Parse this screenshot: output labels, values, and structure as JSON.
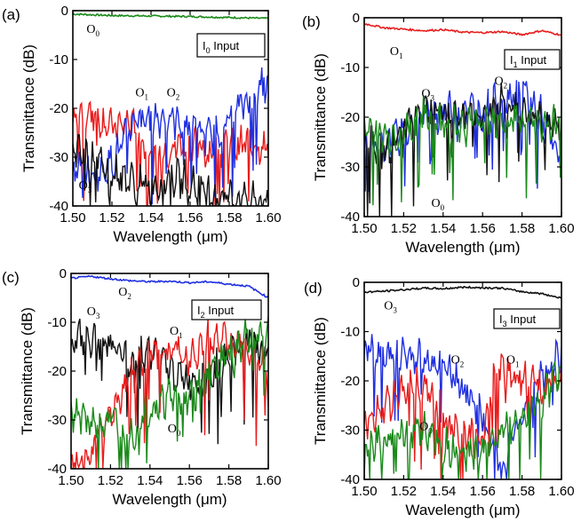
{
  "chart_data": [
    {
      "panel_label": "(a)",
      "type": "line",
      "xlabel": "Wavelength (μm)",
      "ylabel": "Transmittance (dB)",
      "xlim": [
        1.5,
        1.6
      ],
      "ylim": [
        -40,
        0
      ],
      "xticks": [
        "1.50",
        "1.52",
        "1.54",
        "1.56",
        "1.58",
        "1.60"
      ],
      "yticks": [
        "0",
        "-10",
        "-20",
        "-30",
        "-40"
      ],
      "input_label": {
        "main": "I",
        "sub": "0",
        "rest": " Input"
      },
      "series": [
        {
          "id": "O0",
          "color": "#1a8a1a",
          "points": [
            [
              1.5,
              -0.7
            ],
            [
              1.52,
              -1.0
            ],
            [
              1.54,
              -1.1
            ],
            [
              1.56,
              -1.2
            ],
            [
              1.58,
              -1.4
            ],
            [
              1.6,
              -1.6
            ]
          ]
        },
        {
          "id": "O1",
          "color": "#e81c1c",
          "points": [
            [
              1.5,
              -22
            ],
            [
              1.51,
              -21
            ],
            [
              1.52,
              -24
            ],
            [
              1.53,
              -23
            ],
            [
              1.54,
              -30
            ],
            [
              1.55,
              -28
            ],
            [
              1.56,
              -27
            ],
            [
              1.57,
              -29
            ],
            [
              1.58,
              -28
            ],
            [
              1.59,
              -27
            ],
            [
              1.6,
              -28
            ]
          ]
        },
        {
          "id": "O2",
          "color": "#1f2fe0",
          "points": [
            [
              1.5,
              -32
            ],
            [
              1.51,
              -34
            ],
            [
              1.52,
              -31
            ],
            [
              1.53,
              -24
            ],
            [
              1.54,
              -22
            ],
            [
              1.55,
              -22
            ],
            [
              1.56,
              -24
            ],
            [
              1.57,
              -26
            ],
            [
              1.58,
              -22
            ],
            [
              1.59,
              -18
            ],
            [
              1.6,
              -15
            ]
          ]
        },
        {
          "id": "O3",
          "color": "#111111",
          "points": [
            [
              1.5,
              -29
            ],
            [
              1.51,
              -30
            ],
            [
              1.52,
              -33
            ],
            [
              1.53,
              -35
            ],
            [
              1.54,
              -36
            ],
            [
              1.55,
              -34
            ],
            [
              1.56,
              -35
            ],
            [
              1.57,
              -37
            ],
            [
              1.58,
              -38
            ],
            [
              1.59,
              -39
            ],
            [
              1.6,
              -40
            ]
          ]
        }
      ],
      "annotations": [
        {
          "main": "O",
          "sub": "0",
          "x": 1.507,
          "y": -4.5
        },
        {
          "main": "O",
          "sub": "1",
          "x": 1.532,
          "y": -17.5
        },
        {
          "main": "O",
          "sub": "2",
          "x": 1.548,
          "y": -17.5
        },
        {
          "main": "O",
          "sub": "3",
          "x": 1.503,
          "y": -36.5
        }
      ]
    },
    {
      "panel_label": "(b)",
      "type": "line",
      "xlabel": "Wavelength (μm)",
      "ylabel": "Transmittance (dB)",
      "xlim": [
        1.5,
        1.6
      ],
      "ylim": [
        -40,
        0
      ],
      "xticks": [
        "1.50",
        "1.52",
        "1.54",
        "1.56",
        "1.58",
        "1.60"
      ],
      "yticks": [
        "0",
        "-10",
        "-20",
        "-30",
        "-40"
      ],
      "input_label": {
        "main": "I",
        "sub": "1",
        "rest": " Input"
      },
      "series": [
        {
          "id": "O1",
          "color": "#e81c1c",
          "points": [
            [
              1.5,
              -1.2
            ],
            [
              1.51,
              -2.0
            ],
            [
              1.52,
              -2.3
            ],
            [
              1.53,
              -2.6
            ],
            [
              1.54,
              -2.4
            ],
            [
              1.55,
              -2.9
            ],
            [
              1.56,
              -3.0
            ],
            [
              1.57,
              -2.8
            ],
            [
              1.58,
              -3.4
            ],
            [
              1.59,
              -2.6
            ],
            [
              1.6,
              -3.5
            ]
          ]
        },
        {
          "id": "O2",
          "color": "#1f2fe0",
          "points": [
            [
              1.5,
              -27
            ],
            [
              1.51,
              -26
            ],
            [
              1.52,
              -23
            ],
            [
              1.53,
              -20
            ],
            [
              1.54,
              -19
            ],
            [
              1.55,
              -18
            ],
            [
              1.56,
              -19
            ],
            [
              1.57,
              -16
            ],
            [
              1.58,
              -14.5
            ],
            [
              1.59,
              -20
            ],
            [
              1.6,
              -30
            ]
          ]
        },
        {
          "id": "O3",
          "color": "#111111",
          "points": [
            [
              1.5,
              -24
            ],
            [
              1.51,
              -27
            ],
            [
              1.52,
              -22
            ],
            [
              1.53,
              -18
            ],
            [
              1.54,
              -19
            ],
            [
              1.55,
              -20
            ],
            [
              1.56,
              -19
            ],
            [
              1.57,
              -17
            ],
            [
              1.58,
              -19
            ],
            [
              1.59,
              -21
            ],
            [
              1.6,
              -22
            ]
          ]
        },
        {
          "id": "O0",
          "color": "#1a8a1a",
          "points": [
            [
              1.5,
              -22
            ],
            [
              1.51,
              -24
            ],
            [
              1.52,
              -23
            ],
            [
              1.53,
              -20
            ],
            [
              1.54,
              -21
            ],
            [
              1.55,
              -22
            ],
            [
              1.56,
              -20
            ],
            [
              1.57,
              -20
            ],
            [
              1.58,
              -21
            ],
            [
              1.59,
              -22
            ],
            [
              1.6,
              -21
            ]
          ]
        }
      ],
      "annotations": [
        {
          "main": "O",
          "sub": "1",
          "x": 1.513,
          "y": -7.5
        },
        {
          "main": "O",
          "sub": "3",
          "x": 1.529,
          "y": -16
        },
        {
          "main": "O",
          "sub": "2",
          "x": 1.566,
          "y": -13.5
        },
        {
          "main": "O",
          "sub": "0",
          "x": 1.534,
          "y": -38
        }
      ]
    },
    {
      "panel_label": "(c)",
      "type": "line",
      "xlabel": "Wavelength (μm)",
      "ylabel": "Transmittance (dB)",
      "xlim": [
        1.5,
        1.6
      ],
      "ylim": [
        -40,
        0
      ],
      "xticks": [
        "1.50",
        "1.52",
        "1.54",
        "1.56",
        "1.58",
        "1.60"
      ],
      "yticks": [
        "0",
        "-10",
        "-20",
        "-30",
        "-40"
      ],
      "input_label": {
        "main": "I",
        "sub": "2",
        "rest": " Input"
      },
      "series": [
        {
          "id": "O2",
          "color": "#1f2fe0",
          "points": [
            [
              1.5,
              -1.0
            ],
            [
              1.51,
              -0.6
            ],
            [
              1.52,
              -1.1
            ],
            [
              1.53,
              -1.5
            ],
            [
              1.54,
              -1.7
            ],
            [
              1.55,
              -1.6
            ],
            [
              1.56,
              -1.9
            ],
            [
              1.57,
              -1.7
            ],
            [
              1.58,
              -2.2
            ],
            [
              1.59,
              -2.6
            ],
            [
              1.6,
              -5.0
            ]
          ]
        },
        {
          "id": "O3",
          "color": "#111111",
          "points": [
            [
              1.5,
              -14
            ],
            [
              1.51,
              -13
            ],
            [
              1.52,
              -15
            ],
            [
              1.53,
              -17
            ],
            [
              1.54,
              -16
            ],
            [
              1.55,
              -20
            ],
            [
              1.56,
              -22
            ],
            [
              1.57,
              -21
            ],
            [
              1.58,
              -17
            ],
            [
              1.59,
              -14
            ],
            [
              1.6,
              -17
            ]
          ]
        },
        {
          "id": "O1",
          "color": "#e81c1c",
          "points": [
            [
              1.5,
              -40
            ],
            [
              1.51,
              -37
            ],
            [
              1.52,
              -29
            ],
            [
              1.53,
              -21
            ],
            [
              1.54,
              -17
            ],
            [
              1.55,
              -16
            ],
            [
              1.56,
              -17
            ],
            [
              1.57,
              -13
            ],
            [
              1.58,
              -14
            ],
            [
              1.59,
              -16
            ],
            [
              1.6,
              -20
            ]
          ]
        },
        {
          "id": "O0",
          "color": "#1a8a1a",
          "points": [
            [
              1.5,
              -28
            ],
            [
              1.51,
              -31
            ],
            [
              1.52,
              -30
            ],
            [
              1.53,
              -33
            ],
            [
              1.54,
              -28
            ],
            [
              1.55,
              -25
            ],
            [
              1.56,
              -26
            ],
            [
              1.57,
              -20
            ],
            [
              1.58,
              -17
            ],
            [
              1.59,
              -13
            ],
            [
              1.6,
              -12
            ]
          ]
        }
      ],
      "annotations": [
        {
          "main": "O",
          "sub": "2",
          "x": 1.524,
          "y": -4.5
        },
        {
          "main": "O",
          "sub": "3",
          "x": 1.508,
          "y": -8.5
        },
        {
          "main": "O",
          "sub": "1",
          "x": 1.55,
          "y": -12.5
        },
        {
          "main": "O",
          "sub": "0",
          "x": 1.549,
          "y": -32.5
        }
      ]
    },
    {
      "panel_label": "(d)",
      "type": "line",
      "xlabel": "Wavelength (μm)",
      "ylabel": "Transmittance (dB)",
      "xlim": [
        1.5,
        1.6
      ],
      "ylim": [
        -40,
        0
      ],
      "xticks": [
        "1.50",
        "1.52",
        "1.54",
        "1.56",
        "1.58",
        "1.60"
      ],
      "yticks": [
        "0",
        "-10",
        "-20",
        "-30",
        "-40"
      ],
      "input_label": {
        "main": "I",
        "sub": "3",
        "rest": " Input"
      },
      "series": [
        {
          "id": "O3",
          "color": "#111111",
          "points": [
            [
              1.5,
              -2.0
            ],
            [
              1.51,
              -1.8
            ],
            [
              1.52,
              -1.5
            ],
            [
              1.53,
              -1.2
            ],
            [
              1.54,
              -1.3
            ],
            [
              1.55,
              -1.0
            ],
            [
              1.56,
              -1.1
            ],
            [
              1.57,
              -1.2
            ],
            [
              1.58,
              -1.9
            ],
            [
              1.59,
              -2.3
            ],
            [
              1.6,
              -3.2
            ]
          ]
        },
        {
          "id": "O2",
          "color": "#1f2fe0",
          "points": [
            [
              1.5,
              -13.5
            ],
            [
              1.51,
              -14.5
            ],
            [
              1.52,
              -15
            ],
            [
              1.53,
              -15.5
            ],
            [
              1.54,
              -17
            ],
            [
              1.55,
              -21
            ],
            [
              1.56,
              -27
            ],
            [
              1.57,
              -38
            ],
            [
              1.58,
              -27
            ],
            [
              1.59,
              -19
            ],
            [
              1.6,
              -15
            ]
          ]
        },
        {
          "id": "O1",
          "color": "#e81c1c",
          "points": [
            [
              1.5,
              -28
            ],
            [
              1.51,
              -25
            ],
            [
              1.52,
              -22
            ],
            [
              1.53,
              -21
            ],
            [
              1.54,
              -26
            ],
            [
              1.55,
              -32
            ],
            [
              1.56,
              -31
            ],
            [
              1.565,
              -21
            ],
            [
              1.57,
              -18
            ],
            [
              1.58,
              -19
            ],
            [
              1.59,
              -22
            ],
            [
              1.6,
              -18
            ]
          ]
        },
        {
          "id": "O0",
          "color": "#1a8a1a",
          "points": [
            [
              1.5,
              -34
            ],
            [
              1.51,
              -32
            ],
            [
              1.52,
              -31
            ],
            [
              1.53,
              -30
            ],
            [
              1.54,
              -33
            ],
            [
              1.55,
              -35
            ],
            [
              1.56,
              -34
            ],
            [
              1.57,
              -30
            ],
            [
              1.58,
              -28
            ],
            [
              1.59,
              -24
            ],
            [
              1.6,
              -17
            ]
          ]
        }
      ],
      "annotations": [
        {
          "main": "O",
          "sub": "3",
          "x": 1.51,
          "y": -5.5
        },
        {
          "main": "O",
          "sub": "2",
          "x": 1.544,
          "y": -16.5
        },
        {
          "main": "O",
          "sub": "1",
          "x": 1.572,
          "y": -16.5
        },
        {
          "main": "O",
          "sub": "0",
          "x": 1.528,
          "y": -30
        }
      ]
    }
  ]
}
